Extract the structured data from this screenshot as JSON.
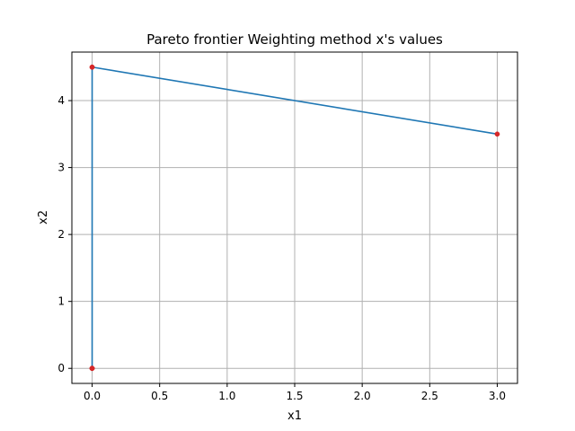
{
  "chart_data": {
    "type": "line",
    "title": "Pareto frontier Weighting method x's values",
    "xlabel": "x1",
    "ylabel": "x2",
    "xlim": [
      -0.15,
      3.15
    ],
    "ylim": [
      -0.225,
      4.725
    ],
    "xticks": [
      0.0,
      0.5,
      1.0,
      1.5,
      2.0,
      2.5,
      3.0
    ],
    "xtick_labels": [
      "0.0",
      "0.5",
      "1.0",
      "1.5",
      "2.0",
      "2.5",
      "3.0"
    ],
    "yticks": [
      0,
      1,
      2,
      3,
      4
    ],
    "ytick_labels": [
      "0",
      "1",
      "2",
      "3",
      "4"
    ],
    "grid": true,
    "series": [
      {
        "x": [
          0.0,
          0.0,
          0.0,
          0.0,
          0.0,
          0.0,
          3.0
        ],
        "y": [
          0.0,
          0.0,
          0.0,
          0.0,
          4.5,
          4.5,
          3.5
        ],
        "line_color": "#1f77b4",
        "marker_color": "#d62728"
      }
    ]
  }
}
